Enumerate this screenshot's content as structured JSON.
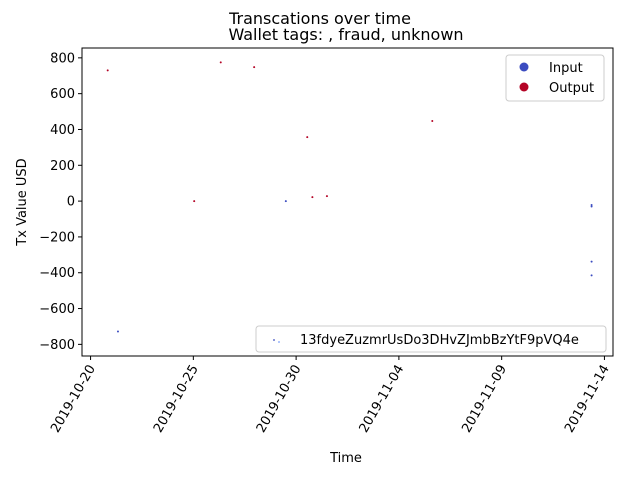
{
  "chart_data": {
    "type": "scatter",
    "title": "Transcations over time",
    "subtitle": "Wallet tags: , fraud, unknown",
    "xlabel": "Time",
    "ylabel": "Tx Value USD",
    "xlim": [
      "2019-10-19T14:00",
      "2019-11-14T10:00"
    ],
    "ylim": [
      -865,
      855
    ],
    "x_ticks": [
      "2019-10-20",
      "2019-10-25",
      "2019-10-30",
      "2019-11-04",
      "2019-11-09",
      "2019-11-14"
    ],
    "y_ticks": [
      -800,
      -600,
      -400,
      -200,
      0,
      200,
      400,
      600,
      800
    ],
    "grid": false,
    "legend_placement": "top-right",
    "series": [
      {
        "name": "Input",
        "color": "#3b4cc0",
        "points": [
          {
            "x": "2019-10-21T08:00",
            "y": -728
          },
          {
            "x": "2019-10-29T12:00",
            "y": 0
          },
          {
            "x": "2019-11-13T09:00",
            "y": -22
          },
          {
            "x": "2019-11-13T09:00",
            "y": -30
          },
          {
            "x": "2019-11-13T09:00",
            "y": -338
          },
          {
            "x": "2019-11-13T09:00",
            "y": -415
          }
        ]
      },
      {
        "name": "Output",
        "color": "#b40426",
        "points": [
          {
            "x": "2019-10-20T20:00",
            "y": 730
          },
          {
            "x": "2019-10-25T01:00",
            "y": 0
          },
          {
            "x": "2019-10-26T08:00",
            "y": 775
          },
          {
            "x": "2019-10-27T23:00",
            "y": 748
          },
          {
            "x": "2019-10-30T13:00",
            "y": 357
          },
          {
            "x": "2019-10-30T19:00",
            "y": 22
          },
          {
            "x": "2019-10-31T12:00",
            "y": 28
          },
          {
            "x": "2019-11-05T15:00",
            "y": 447
          }
        ]
      }
    ],
    "secondary_legend": "13fdyeZuzmrUsDo3DHvZJmbBzYtF9pVQ4e"
  }
}
